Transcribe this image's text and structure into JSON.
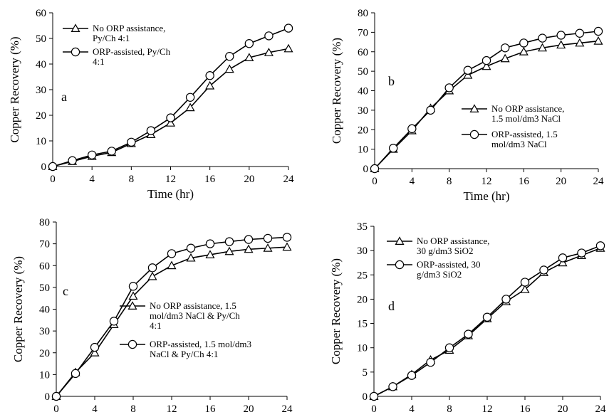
{
  "chart_data": [
    {
      "type": "line",
      "panel_label": "a",
      "xlabel": "Time (hr)",
      "ylabel": "Copper Recovery (%)",
      "xlim": [
        0,
        24
      ],
      "ylim": [
        0,
        60
      ],
      "xticks": [
        "0",
        "4",
        "8",
        "12",
        "16",
        "20",
        "24"
      ],
      "yticks": [
        "0",
        "10",
        "20",
        "30",
        "40",
        "50",
        "60"
      ],
      "legend_position": "top-left",
      "series": [
        {
          "name": "No ORP assistance, Py/Ch 4:1",
          "legend_lines": [
            "No ORP assistance,",
            "Py/Ch 4:1"
          ],
          "marker": "triangle",
          "x": [
            0,
            2,
            4,
            6,
            8,
            10,
            12,
            14,
            16,
            18,
            20,
            22,
            24
          ],
          "y": [
            0,
            2,
            4,
            5.5,
            9,
            12.5,
            17,
            23,
            31.5,
            38,
            42.5,
            44.5,
            46
          ]
        },
        {
          "name": "ORP-assisted, Py/Ch 4:1",
          "legend_lines": [
            "ORP-assisted, Py/Ch",
            "4:1"
          ],
          "marker": "circle",
          "x": [
            0,
            2,
            4,
            6,
            8,
            10,
            12,
            14,
            16,
            18,
            20,
            22,
            24
          ],
          "y": [
            0,
            2.3,
            4.5,
            6,
            9.5,
            14,
            19,
            27,
            35.5,
            43,
            48,
            51,
            54
          ]
        }
      ]
    },
    {
      "type": "line",
      "panel_label": "b",
      "xlabel": "Time (hr)",
      "ylabel": "Copper Recovery (%)",
      "xlim": [
        0,
        24
      ],
      "ylim": [
        0,
        80
      ],
      "xticks": [
        "0",
        "4",
        "8",
        "12",
        "16",
        "20",
        "24"
      ],
      "yticks": [
        "0",
        "10",
        "20",
        "30",
        "40",
        "50",
        "60",
        "70",
        "80"
      ],
      "legend_position": "center-right",
      "series": [
        {
          "name": "No ORP assistance, 1.5 mol/dm3 NaCl",
          "legend_lines": [
            "No ORP assistance,",
            "1.5 mol/dm3 NaCl"
          ],
          "marker": "triangle",
          "x": [
            0,
            2,
            4,
            6,
            8,
            10,
            12,
            14,
            16,
            18,
            20,
            22,
            24
          ],
          "y": [
            0,
            10,
            19.5,
            31,
            40,
            48,
            52.5,
            56.5,
            60,
            62,
            63.5,
            64.5,
            65.5
          ]
        },
        {
          "name": "ORP-assisted, 1.5 mol/dm3 NaCl",
          "legend_lines": [
            "ORP-assisted, 1.5",
            "mol/dm3 NaCl"
          ],
          "marker": "circle",
          "x": [
            0,
            2,
            4,
            6,
            8,
            10,
            12,
            14,
            16,
            18,
            20,
            22,
            24
          ],
          "y": [
            0,
            10.5,
            20.5,
            30,
            41.5,
            50.5,
            55.5,
            62,
            64.5,
            67,
            68.5,
            69.5,
            70.5
          ]
        }
      ]
    },
    {
      "type": "line",
      "panel_label": "c",
      "xlabel": "Time (hr)",
      "ylabel": "Copper Recovery (%)",
      "xlim": [
        0,
        24
      ],
      "ylim": [
        0,
        80
      ],
      "xticks": [
        "0",
        "4",
        "8",
        "12",
        "16",
        "20",
        "24"
      ],
      "yticks": [
        "0",
        "10",
        "20",
        "30",
        "40",
        "50",
        "60",
        "70",
        "80"
      ],
      "legend_position": "center-right",
      "series": [
        {
          "name": "No ORP assistance, 1.5 mol/dm3 NaCl & Py/Ch 4:1",
          "legend_lines": [
            "No ORP assistance, 1.5",
            "mol/dm3 NaCl & Py/Ch",
            "4:1"
          ],
          "marker": "triangle",
          "x": [
            0,
            2,
            4,
            6,
            8,
            10,
            12,
            14,
            16,
            18,
            20,
            22,
            24
          ],
          "y": [
            0,
            11,
            20,
            33,
            46,
            55,
            60,
            63.5,
            65,
            66.5,
            67.5,
            68,
            68.5
          ]
        },
        {
          "name": "ORP-assisted, 1.5 mol/dm3 NaCl & Py/Ch 4:1",
          "legend_lines": [
            "ORP-assisted, 1.5 mol/dm3",
            "NaCl & Py/Ch 4:1"
          ],
          "marker": "circle",
          "x": [
            0,
            2,
            4,
            6,
            8,
            10,
            12,
            14,
            16,
            18,
            20,
            22,
            24
          ],
          "y": [
            0,
            10.5,
            22.5,
            34.5,
            50.5,
            59,
            65.5,
            68,
            70,
            71,
            72,
            72.5,
            73
          ]
        }
      ]
    },
    {
      "type": "line",
      "panel_label": "d",
      "xlabel": "Time (hr)",
      "ylabel": "Copper Recovery (%)",
      "xlim": [
        0,
        24
      ],
      "ylim": [
        0,
        35
      ],
      "xticks": [
        "0",
        "4",
        "8",
        "12",
        "16",
        "20",
        "24"
      ],
      "yticks": [
        "0",
        "5",
        "10",
        "15",
        "20",
        "25",
        "30",
        "35"
      ],
      "legend_position": "top-left",
      "series": [
        {
          "name": "No ORP assistance, 30 g/dm3 SiO2",
          "legend_lines": [
            "No ORP assistance,",
            "30 g/dm3  SiO2"
          ],
          "marker": "triangle",
          "x": [
            0,
            2,
            4,
            6,
            8,
            10,
            12,
            14,
            16,
            18,
            20,
            22,
            24
          ],
          "y": [
            0,
            2,
            4.5,
            7.5,
            9.5,
            12.5,
            16,
            19.5,
            22,
            25.5,
            27.5,
            29,
            30.5
          ]
        },
        {
          "name": "ORP-assisted, 30 g/dm3 SiO2",
          "legend_lines": [
            "ORP-assisted, 30",
            "g/dm3  SiO2"
          ],
          "marker": "circle",
          "x": [
            0,
            2,
            4,
            6,
            8,
            10,
            12,
            14,
            16,
            18,
            20,
            22,
            24
          ],
          "y": [
            0,
            2,
            4.3,
            7,
            10,
            12.8,
            16.3,
            20,
            23.5,
            26,
            28.5,
            29.5,
            31
          ]
        }
      ]
    }
  ]
}
